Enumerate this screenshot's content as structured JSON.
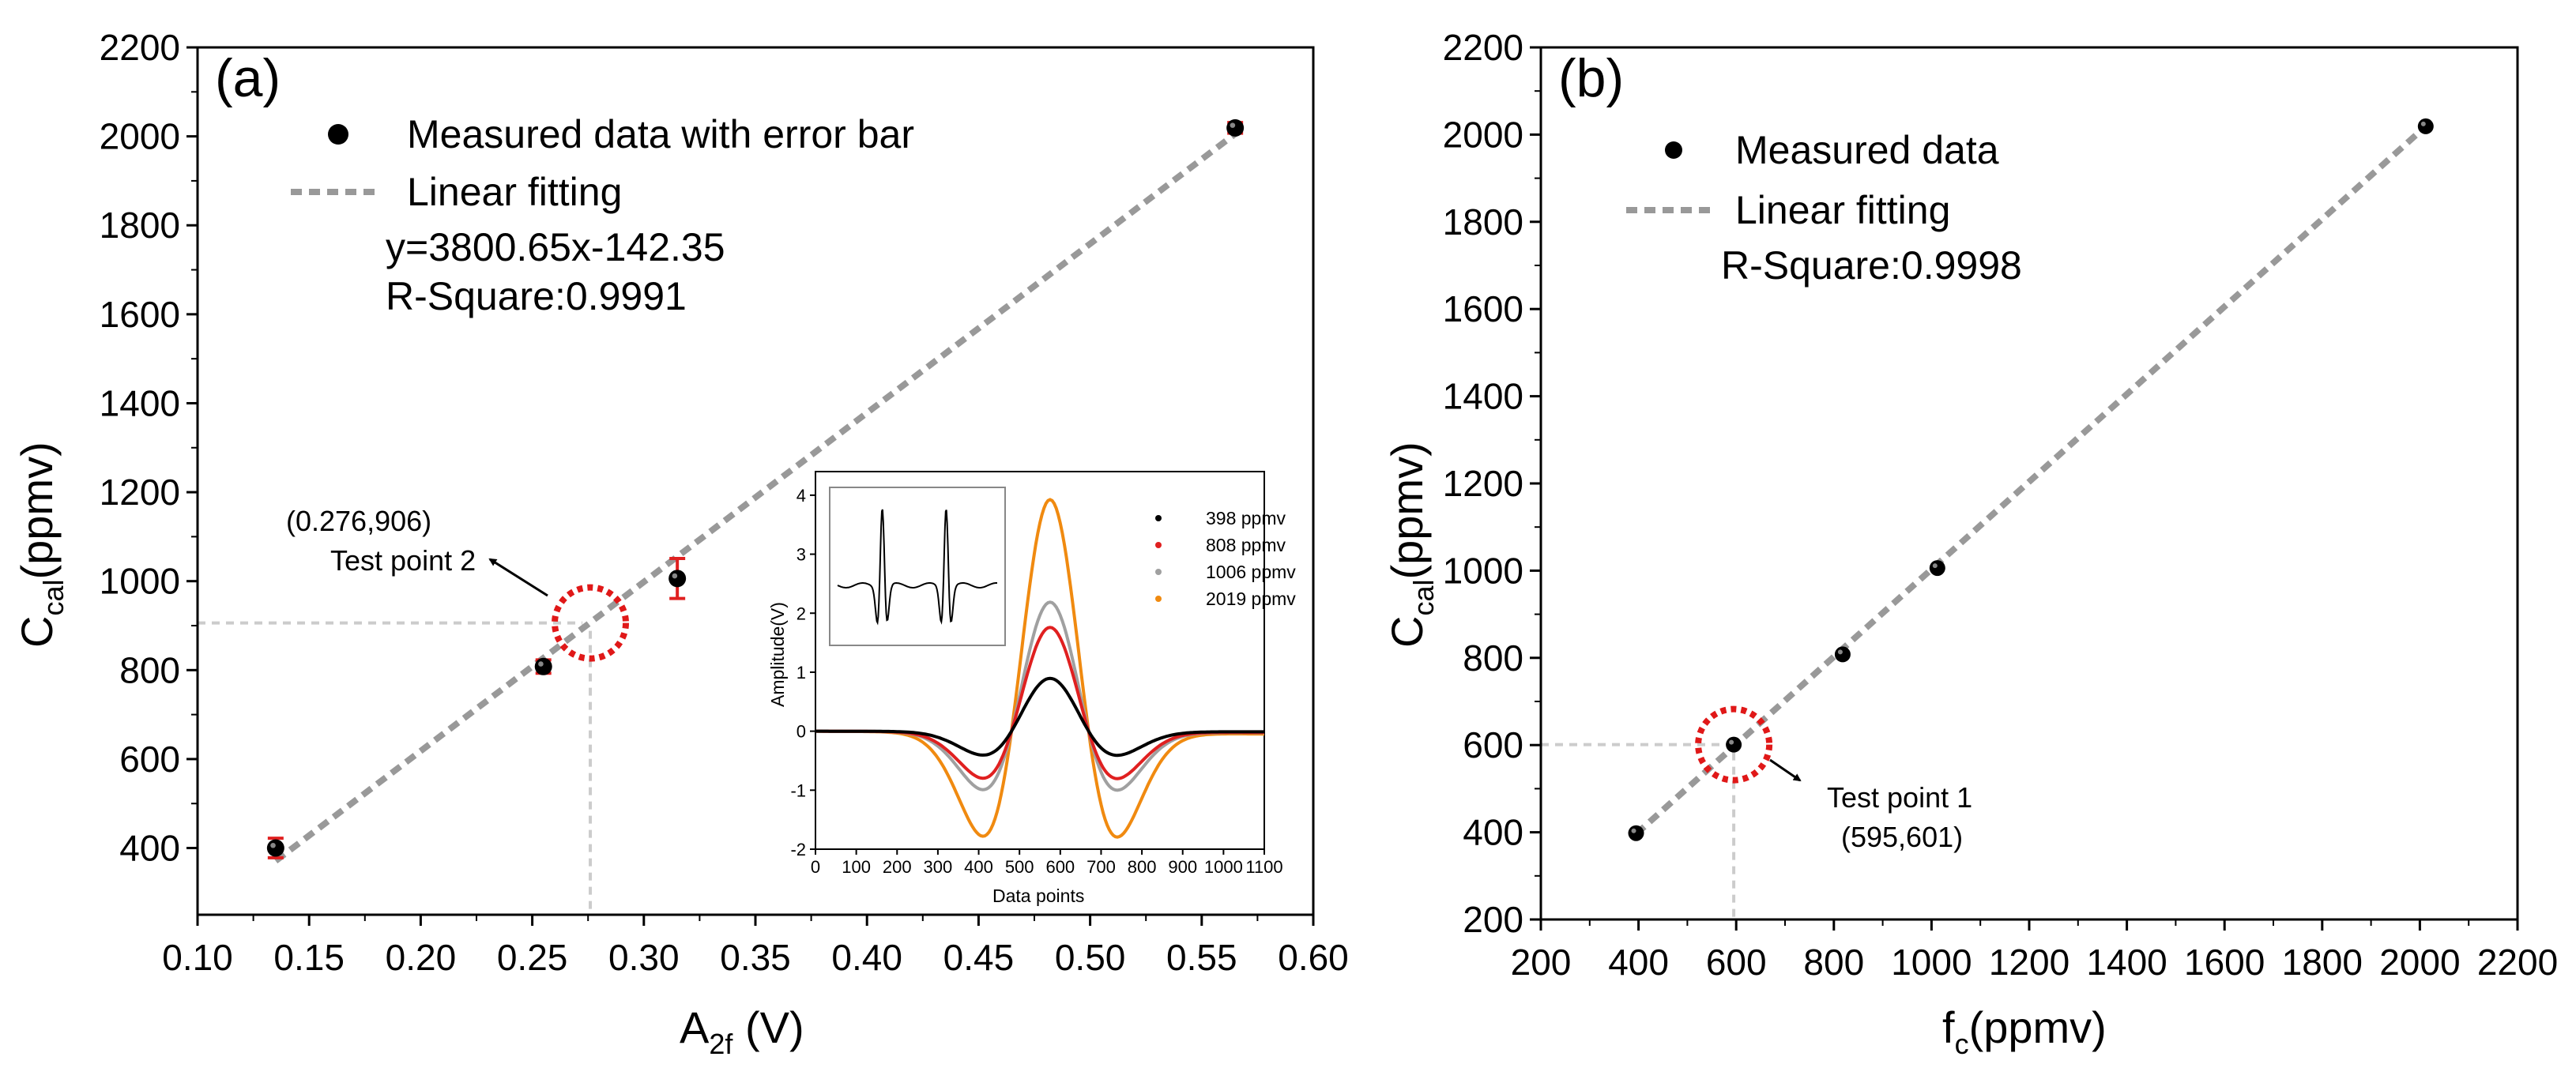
{
  "chart_data": [
    {
      "type": "scatter",
      "panel_label": "(a)",
      "xlabel": "A",
      "xlabel_sub": "2f",
      "xlabel_unit": " (V)",
      "ylabel": "C",
      "ylabel_sub": "cal",
      "ylabel_unit": "(ppmv)",
      "xlim": [
        0.1,
        0.6
      ],
      "ylim": [
        250,
        2200
      ],
      "xticks": [
        "0.10",
        "0.15",
        "0.20",
        "0.25",
        "0.30",
        "0.35",
        "0.40",
        "0.45",
        "0.50",
        "0.55",
        "0.60"
      ],
      "yticks": [
        "400",
        "600",
        "800",
        "1000",
        "1200",
        "1400",
        "1600",
        "1800",
        "2000",
        "2200"
      ],
      "series": [
        {
          "name": "Measured data with error bar",
          "points": [
            {
              "x": 0.135,
              "y": 400,
              "err": 22
            },
            {
              "x": 0.255,
              "y": 808,
              "err": 15
            },
            {
              "x": 0.315,
              "y": 1006,
              "err": 45
            },
            {
              "x": 0.565,
              "y": 2019,
              "err": 12
            }
          ]
        },
        {
          "name": "Linear fitting",
          "style": "dashed",
          "line": [
            [
              0.135,
              371
            ],
            [
              0.568,
              2017
            ]
          ]
        }
      ],
      "equation": "y=3800.65x-142.35",
      "r_square": "R-Square:0.9991",
      "test_point": {
        "x": 0.276,
        "y": 906,
        "coord_label": "(0.276,906)",
        "label": "Test point 2"
      },
      "inset": {
        "type": "line",
        "xlabel": "Data points",
        "ylabel": "Amplitude(V)",
        "xlim": [
          0,
          1100
        ],
        "ylim": [
          -2,
          4.4
        ],
        "xticks": [
          "0",
          "100",
          "200",
          "300",
          "400",
          "500",
          "600",
          "700",
          "800",
          "900",
          "1000",
          "1100"
        ],
        "yticks": [
          "-2",
          "-1",
          "0",
          "1",
          "2",
          "3",
          "4"
        ],
        "legend": [
          {
            "label": "398   ppmv",
            "color": "#000000",
            "amp": 0.9
          },
          {
            "label": "808   ppmv",
            "color": "#e02020",
            "amp": 1.77
          },
          {
            "label": "1006 ppmv",
            "color": "#a0a0a0",
            "amp": 2.2
          },
          {
            "label": "2019 ppmv",
            "color": "#f08a10",
            "amp": 3.95
          }
        ]
      }
    },
    {
      "type": "scatter",
      "panel_label": "(b)",
      "xlabel": "f",
      "xlabel_sub": "c",
      "xlabel_unit": "(ppmv)",
      "ylabel": "C",
      "ylabel_sub": "cal",
      "ylabel_unit": "(ppmv)",
      "xlim": [
        200,
        2200
      ],
      "ylim": [
        200,
        2200
      ],
      "xticks": [
        "200",
        "400",
        "600",
        "800",
        "1000",
        "1200",
        "1400",
        "1600",
        "1800",
        "2000",
        "2200"
      ],
      "yticks": [
        "200",
        "400",
        "600",
        "800",
        "1000",
        "1200",
        "1400",
        "1600",
        "1800",
        "2000",
        "2200"
      ],
      "series": [
        {
          "name": "Measured data",
          "points": [
            {
              "x": 395,
              "y": 398
            },
            {
              "x": 595,
              "y": 601
            },
            {
              "x": 818,
              "y": 808
            },
            {
              "x": 1012,
              "y": 1006
            },
            {
              "x": 2012,
              "y": 2019
            }
          ]
        },
        {
          "name": "Linear fitting",
          "style": "dashed",
          "line": [
            [
              395,
              396
            ],
            [
              2012,
              2019
            ]
          ]
        }
      ],
      "r_square": "R-Square:0.9998",
      "test_point": {
        "x": 595,
        "y": 601,
        "coord_label": "(595,601)",
        "label": "Test point 1"
      }
    }
  ]
}
